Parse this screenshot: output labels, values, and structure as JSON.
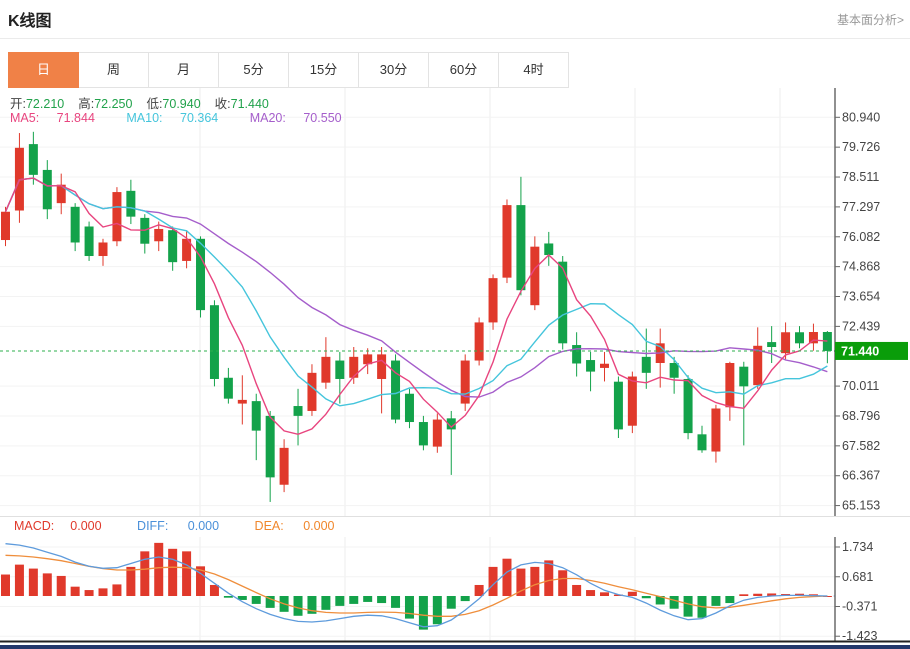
{
  "page": {
    "title": "K线图",
    "link": "基本面分析>"
  },
  "tabs": {
    "items": [
      "日",
      "周",
      "月",
      "5分",
      "15分",
      "30分",
      "60分",
      "4时"
    ],
    "active_index": 0
  },
  "ohlc": {
    "open_label": "开:",
    "open": "72.210",
    "high_label": "高:",
    "high": "72.250",
    "low_label": "低:",
    "low": "70.940",
    "close_label": "收:",
    "close": "71.440"
  },
  "ma": {
    "ma5_label": "MA5:",
    "ma5": "71.844",
    "ma10_label": "MA10:",
    "ma10": "70.364",
    "ma20_label": "MA20:",
    "ma20": "70.550"
  },
  "macd_header": {
    "macd_label": "MACD:",
    "macd": "0.000",
    "diff_label": "DIFF:",
    "diff": "0.000",
    "dea_label": "DEA:",
    "dea": "0.000"
  },
  "price_axis": {
    "ticks": [
      "80.940",
      "79.726",
      "78.511",
      "77.297",
      "76.082",
      "74.868",
      "73.654",
      "72.439",
      "70.011",
      "68.796",
      "67.582",
      "66.367",
      "65.153"
    ],
    "current": "71.440"
  },
  "macd_axis": {
    "ticks": [
      "1.734",
      "0.681",
      "-0.371",
      "-1.423"
    ]
  },
  "colors": {
    "up_red": "#e0392b",
    "down_green": "#13a24a",
    "value_green": "#21a24b",
    "ma5_pink": "#e8457f",
    "ma10_cyan": "#45c5dc",
    "ma20_purple": "#a55ecb",
    "macd_red": "#e0392b",
    "diff_blue": "#4a90d9",
    "dea_orange": "#f0872c",
    "diff_line": "#5e9bdc",
    "dea_line": "#ef8e3c",
    "tab_orange": "#f08147",
    "price_tag_green": "#0a9d0a",
    "current_line_green": "#2eaf4e",
    "axis_dark": "#222222",
    "grid": "#f3f3f3",
    "vgrid": "#ececec",
    "slider_navy": "#24386b",
    "dash_ext": "#a9c7e8"
  },
  "chart_data": {
    "type": "candlestick+macd",
    "title": "K线图",
    "legend": [
      "MA5",
      "MA10",
      "MA20",
      "MACD",
      "DIFF",
      "DEA"
    ],
    "price_axis_ticks": [
      80.94,
      79.726,
      78.511,
      77.297,
      76.082,
      74.868,
      73.654,
      72.439,
      70.011,
      68.796,
      67.582,
      66.367,
      65.153
    ],
    "price_range": [
      65.153,
      80.94
    ],
    "current_price": 71.44,
    "last_ohlc": {
      "open": 72.21,
      "high": 72.25,
      "low": 70.94,
      "close": 71.44
    },
    "ma_values": {
      "ma5": 71.844,
      "ma10": 70.364,
      "ma20": 70.55
    },
    "macd_axis_ticks": [
      1.734,
      0.681,
      -0.371,
      -1.423
    ],
    "candles": [
      [
        75.95,
        77.3,
        75.7,
        77.1
      ],
      [
        77.15,
        80.3,
        76.65,
        79.7
      ],
      [
        79.85,
        80.35,
        78.2,
        78.6
      ],
      [
        78.8,
        79.2,
        76.8,
        77.2
      ],
      [
        77.45,
        78.65,
        77.0,
        78.2
      ],
      [
        77.3,
        77.45,
        75.5,
        75.85
      ],
      [
        76.5,
        76.7,
        75.1,
        75.3
      ],
      [
        75.3,
        76.0,
        74.9,
        75.85
      ],
      [
        75.9,
        78.1,
        75.7,
        77.9
      ],
      [
        77.95,
        78.4,
        76.6,
        76.9
      ],
      [
        76.85,
        77.0,
        75.4,
        75.8
      ],
      [
        75.9,
        76.7,
        75.5,
        76.4
      ],
      [
        76.35,
        76.5,
        74.7,
        75.05
      ],
      [
        75.1,
        76.3,
        74.8,
        76.0
      ],
      [
        76.0,
        76.1,
        72.8,
        73.1
      ],
      [
        73.3,
        73.5,
        70.0,
        70.3
      ],
      [
        70.35,
        70.75,
        69.3,
        69.5
      ],
      [
        69.3,
        70.45,
        68.45,
        69.45
      ],
      [
        69.4,
        69.7,
        67.0,
        68.2
      ],
      [
        68.8,
        69.0,
        65.3,
        66.3
      ],
      [
        66.0,
        67.85,
        65.7,
        67.5
      ],
      [
        69.2,
        69.9,
        67.6,
        68.8
      ],
      [
        69.0,
        70.9,
        68.8,
        70.55
      ],
      [
        70.15,
        72.0,
        69.9,
        71.2
      ],
      [
        71.05,
        71.4,
        69.3,
        70.3
      ],
      [
        70.35,
        71.6,
        70.1,
        71.2
      ],
      [
        70.9,
        71.55,
        70.5,
        71.3
      ],
      [
        70.3,
        71.6,
        68.9,
        71.3
      ],
      [
        71.05,
        71.3,
        68.5,
        68.65
      ],
      [
        69.7,
        69.9,
        68.3,
        68.55
      ],
      [
        68.55,
        68.8,
        67.4,
        67.6
      ],
      [
        67.55,
        68.9,
        67.3,
        68.65
      ],
      [
        68.7,
        69.0,
        66.4,
        68.25
      ],
      [
        69.3,
        71.3,
        69.0,
        71.05
      ],
      [
        71.05,
        72.8,
        70.85,
        72.6
      ],
      [
        72.6,
        74.55,
        72.3,
        74.4
      ],
      [
        74.42,
        77.6,
        74.2,
        77.37
      ],
      [
        77.37,
        78.52,
        73.7,
        73.91
      ],
      [
        73.3,
        76.1,
        73.1,
        75.68
      ],
      [
        75.81,
        76.28,
        74.9,
        75.34
      ],
      [
        75.07,
        75.3,
        71.5,
        71.75
      ],
      [
        71.68,
        72.2,
        70.4,
        70.93
      ],
      [
        71.07,
        71.4,
        69.8,
        70.6
      ],
      [
        70.75,
        71.4,
        70.2,
        70.92
      ],
      [
        70.19,
        70.4,
        67.9,
        68.25
      ],
      [
        68.4,
        70.6,
        68.1,
        70.4
      ],
      [
        71.2,
        72.35,
        69.9,
        70.55
      ],
      [
        70.95,
        72.35,
        69.95,
        71.75
      ],
      [
        70.95,
        71.2,
        69.7,
        70.35
      ],
      [
        70.3,
        70.45,
        67.85,
        68.1
      ],
      [
        68.05,
        68.4,
        67.3,
        67.4
      ],
      [
        67.35,
        69.25,
        66.9,
        69.1
      ],
      [
        69.15,
        71.0,
        68.6,
        70.95
      ],
      [
        70.8,
        71.0,
        67.6,
        70.0
      ],
      [
        70.05,
        72.4,
        69.9,
        71.65
      ],
      [
        71.8,
        72.45,
        70.95,
        71.6
      ],
      [
        71.35,
        72.6,
        71.1,
        72.2
      ],
      [
        72.2,
        72.45,
        71.55,
        71.75
      ],
      [
        71.75,
        72.55,
        71.45,
        72.21
      ],
      [
        72.21,
        72.25,
        70.94,
        71.44
      ]
    ],
    "macd": {
      "hist": [
        0.76,
        1.11,
        0.97,
        0.8,
        0.71,
        0.33,
        0.21,
        0.27,
        0.41,
        1.03,
        1.58,
        1.88,
        1.67,
        1.58,
        1.05,
        0.39,
        -0.06,
        -0.14,
        -0.28,
        -0.42,
        -0.56,
        -0.7,
        -0.63,
        -0.49,
        -0.35,
        -0.28,
        -0.21,
        -0.25,
        -0.42,
        -0.8,
        -1.19,
        -1.0,
        -0.45,
        -0.18,
        0.39,
        1.03,
        1.32,
        0.97,
        1.03,
        1.26,
        0.91,
        0.39,
        0.21,
        0.13,
        0.05,
        0.15,
        -0.08,
        -0.3,
        -0.45,
        -0.73,
        -0.77,
        -0.35,
        -0.25,
        0.06,
        0.08,
        0.09,
        0.07,
        0.08,
        0.06,
        0.0
      ],
      "diff": [
        1.85,
        1.8,
        1.7,
        1.55,
        1.4,
        1.2,
        1.05,
        0.98,
        1.0,
        1.15,
        1.3,
        1.38,
        1.3,
        1.1,
        0.8,
        0.45,
        0.1,
        -0.2,
        -0.45,
        -0.65,
        -0.8,
        -0.9,
        -0.92,
        -0.88,
        -0.8,
        -0.72,
        -0.68,
        -0.7,
        -0.8,
        -0.95,
        -1.09,
        -1.05,
        -0.85,
        -0.5,
        -0.1,
        0.4,
        0.85,
        1.1,
        1.19,
        1.15,
        1.0,
        0.75,
        0.45,
        0.2,
        0.05,
        -0.05,
        -0.25,
        -0.5,
        -0.7,
        -0.84,
        -0.8,
        -0.6,
        -0.35,
        -0.15,
        -0.05,
        0.0,
        0.02,
        0.02,
        0.01,
        0.0
      ],
      "dea": [
        1.44,
        1.42,
        1.38,
        1.32,
        1.25,
        1.15,
        1.05,
        0.97,
        0.92,
        0.92,
        0.95,
        1.0,
        1.02,
        1.0,
        0.92,
        0.78,
        0.58,
        0.35,
        0.12,
        -0.1,
        -0.28,
        -0.42,
        -0.52,
        -0.58,
        -0.6,
        -0.6,
        -0.58,
        -0.57,
        -0.58,
        -0.62,
        -0.68,
        -0.72,
        -0.72,
        -0.65,
        -0.52,
        -0.32,
        -0.08,
        0.18,
        0.4,
        0.55,
        0.62,
        0.62,
        0.55,
        0.45,
        0.33,
        0.22,
        0.1,
        -0.02,
        -0.15,
        -0.28,
        -0.38,
        -0.42,
        -0.4,
        -0.33,
        -0.25,
        -0.17,
        -0.1,
        -0.05,
        -0.02,
        0.0
      ]
    }
  }
}
